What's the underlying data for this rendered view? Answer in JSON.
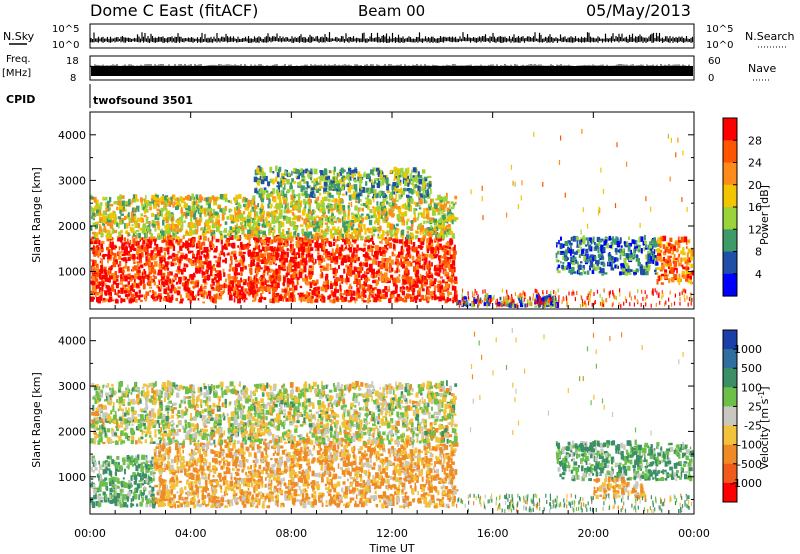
{
  "header": {
    "station": "Dome C East (fitACF)",
    "beam": "Beam 00",
    "date": "05/May/2013"
  },
  "strips": {
    "nsky": {
      "left_label": "N.Sky",
      "tick_top": "10^5",
      "tick_bottom": "10^0",
      "right_label": "N.Search",
      "rtick_top": "10^5",
      "rtick_bottom": "10^0"
    },
    "freq": {
      "left_label_1": "Freq.",
      "left_label_2": "[MHz]",
      "tick_top": "18",
      "tick_bottom": "8",
      "right_label": "Nave",
      "rtick_top": "60",
      "rtick_bottom": "0"
    },
    "cpid": {
      "left_label": "CPID",
      "program": "twofsound 3501"
    }
  },
  "axes": {
    "ylabel": "Slant Range [km]",
    "xlabel": "Time UT",
    "y_ticks": [
      "1000",
      "2000",
      "3000",
      "4000"
    ],
    "x_ticks": [
      "00:00",
      "04:00",
      "08:00",
      "12:00",
      "16:00",
      "20:00",
      "00:00"
    ]
  },
  "colorbars": {
    "power": {
      "label": "Power [dB]",
      "labels": [
        "28",
        "24",
        "20",
        "16",
        "12",
        "8",
        "4"
      ],
      "colors": [
        "#ff0000",
        "#ff5500",
        "#ff8c1a",
        "#f2c500",
        "#9ad33a",
        "#3d9b6a",
        "#1f4fa8",
        "#0000ff"
      ]
    },
    "velocity": {
      "label": "Velocity [m s",
      "label_sup": "-1",
      "label_end": "]",
      "labels": [
        "1000",
        "500",
        "100",
        "25",
        "-25",
        "-100",
        "-500",
        "-1000"
      ],
      "colors": [
        "#1b3fa8",
        "#2e6fa0",
        "#3a8f66",
        "#6cc04a",
        "#c8c8c0",
        "#f2c23a",
        "#f08a24",
        "#f05a1a",
        "#ff0000"
      ]
    }
  },
  "chart_data": [
    {
      "type": "heatmap",
      "title": "Power",
      "xlabel": "Time UT",
      "ylabel": "Slant Range [km]",
      "xlim": [
        "00:00",
        "24:00"
      ],
      "ylim": [
        180,
        4500
      ],
      "colorbar_label": "Power [dB]",
      "colorbar_range": [
        0,
        32
      ],
      "regions": [
        {
          "t_start": 0.0,
          "t_end": 14.5,
          "r_min": 300,
          "r_max": 1700,
          "value": 28
        },
        {
          "t_start": 0.0,
          "t_end": 14.5,
          "r_min": 1700,
          "r_max": 2600,
          "value": 16
        },
        {
          "t_start": 6.5,
          "t_end": 13.5,
          "r_min": 2600,
          "r_max": 3200,
          "value": 12
        },
        {
          "t_start": 14.5,
          "t_end": 18.5,
          "r_min": 200,
          "r_max": 400,
          "value": 8
        },
        {
          "t_start": 18.5,
          "t_end": 22.5,
          "r_min": 900,
          "r_max": 1700,
          "value": 8
        },
        {
          "t_start": 22.5,
          "t_end": 24.0,
          "r_min": 700,
          "r_max": 1700,
          "value": 24
        }
      ]
    },
    {
      "type": "heatmap",
      "title": "Velocity",
      "xlabel": "Time UT",
      "ylabel": "Slant Range [km]",
      "xlim": [
        "00:00",
        "24:00"
      ],
      "ylim": [
        180,
        4500
      ],
      "colorbar_label": "Velocity [m s-1]",
      "colorbar_range": [
        -1000,
        1000
      ],
      "regions": [
        {
          "t_start": 0.0,
          "t_end": 2.5,
          "r_min": 300,
          "r_max": 1400,
          "value": 100
        },
        {
          "t_start": 2.5,
          "t_end": 14.5,
          "r_min": 300,
          "r_max": 1700,
          "value": -100
        },
        {
          "t_start": 0.0,
          "t_end": 14.5,
          "r_min": 1700,
          "r_max": 3000,
          "value": 0
        },
        {
          "t_start": 18.5,
          "t_end": 24.0,
          "r_min": 900,
          "r_max": 1700,
          "value": 100
        },
        {
          "t_start": 20.0,
          "t_end": 22.0,
          "r_min": 500,
          "r_max": 900,
          "value": -100
        }
      ]
    }
  ]
}
